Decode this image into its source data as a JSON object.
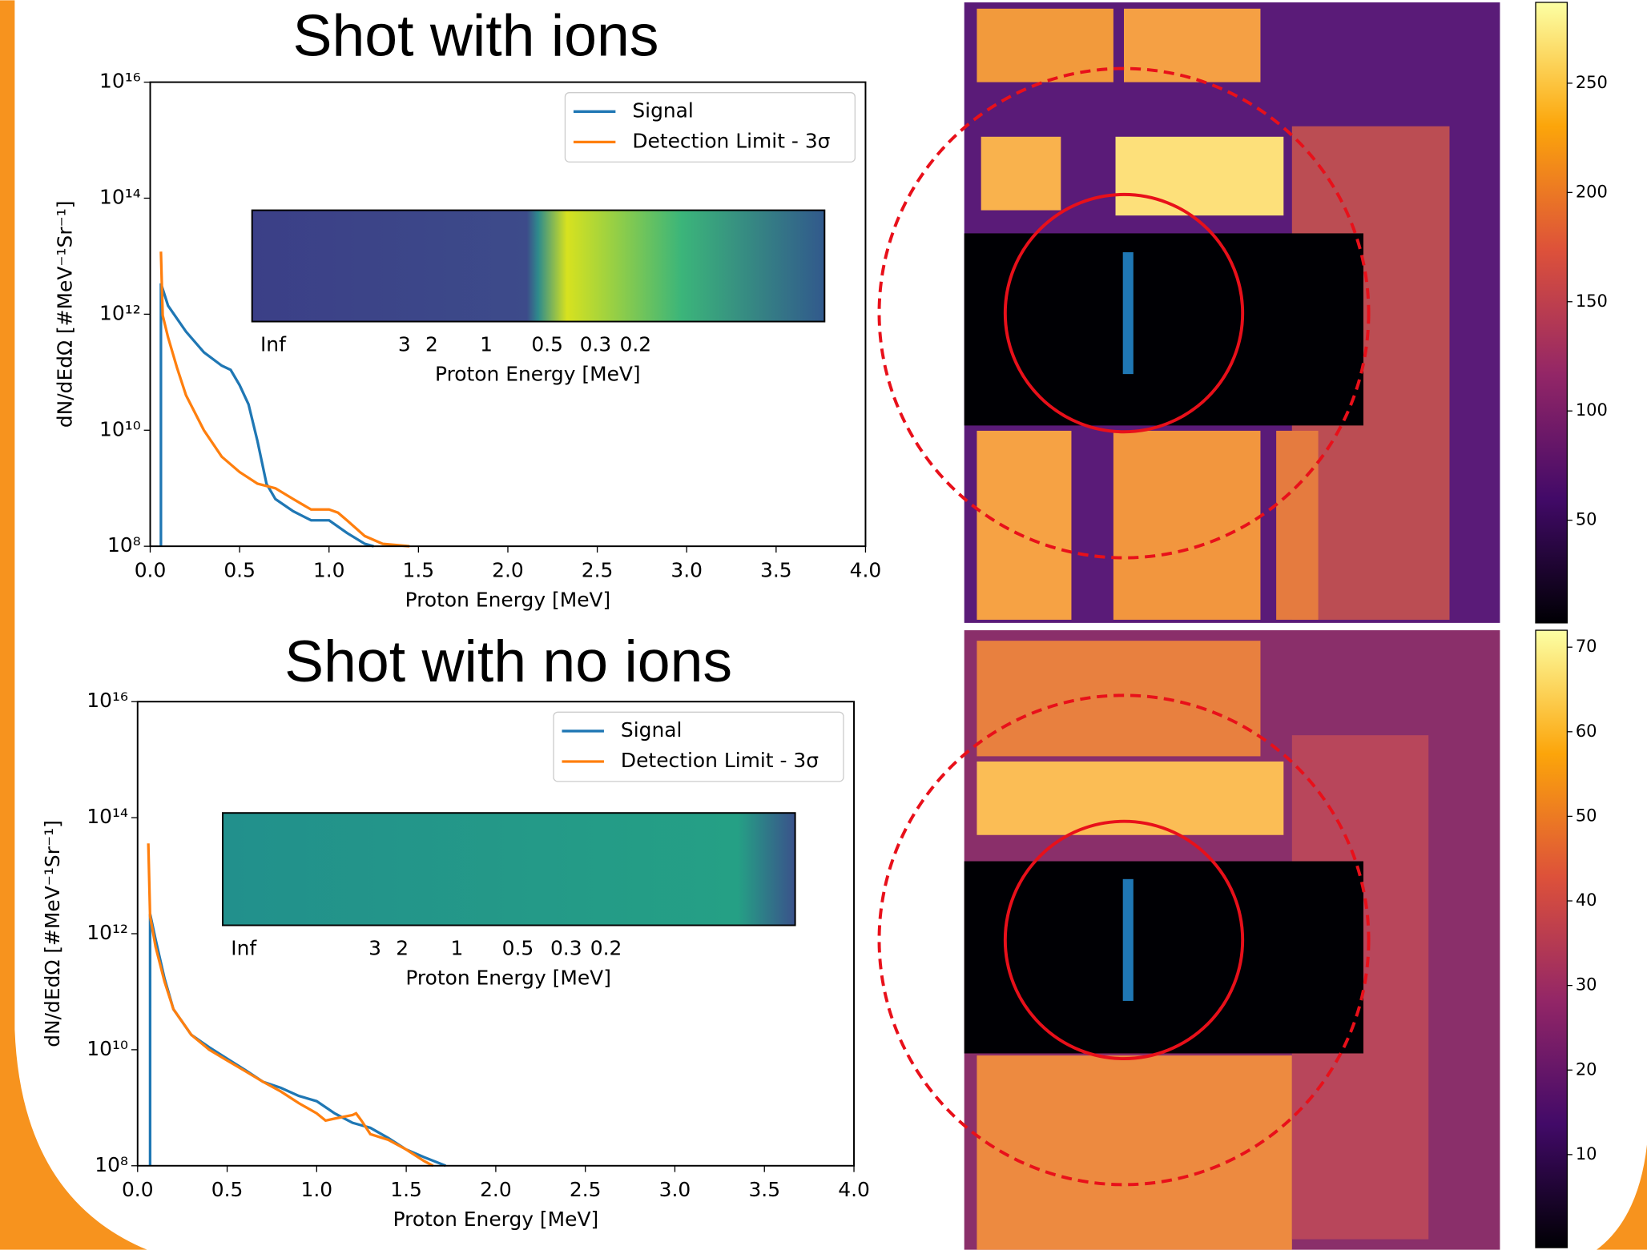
{
  "chart_data": [
    {
      "type": "line",
      "title": "Shot with ions",
      "xlabel": "Proton Energy [MeV]",
      "ylabel": "dN/dEdΩ [#MeV⁻¹Sr⁻¹]",
      "log_y": true,
      "legend": "upper right",
      "xlim": [
        0,
        4
      ],
      "xticks": [
        {
          "value": 0,
          "label": "0.0"
        },
        0.5,
        {
          "value": 1,
          "label": "1.0"
        },
        1.5,
        {
          "value": 2,
          "label": "2.0"
        },
        2.5,
        {
          "value": 3,
          "label": "3.0"
        },
        3.5,
        {
          "value": 4,
          "label": "4.0"
        }
      ],
      "ylim": [
        100000000.0,
        1e+16
      ],
      "yticks": [
        {
          "value": 100000000.0,
          "label": "10⁸"
        },
        {
          "value": 10000000000.0,
          "label": "10¹⁰"
        },
        {
          "value": 1000000000000.0,
          "label": "10¹²"
        },
        {
          "value": 100000000000000.0,
          "label": "10¹⁴"
        },
        {
          "value": 1e+16,
          "label": "10¹⁶"
        }
      ],
      "series": [
        {
          "name": "Signal",
          "color": "#1f77b4",
          "x": [
            0.06,
            0.06,
            0.1,
            0.2,
            0.3,
            0.4,
            0.45,
            0.5,
            0.55,
            0.6,
            0.65,
            0.7,
            0.8,
            0.9,
            1.0,
            1.1,
            1.2,
            1.25
          ],
          "values": [
            100000000.0,
            3400000000000.0,
            1400000000000.0,
            500000000000.0,
            220000000000.0,
            130000000000.0,
            110000000000.0,
            60000000000.0,
            28000000000.0,
            6500000000.0,
            1200000000.0,
            650000000.0,
            400000000.0,
            280000000.0,
            280000000.0,
            170000000.0,
            110000000.0,
            100000000.0
          ]
        },
        {
          "name": "Detection Limit - 3σ",
          "color": "#ff7f0e",
          "x": [
            0.06,
            0.07,
            0.1,
            0.15,
            0.2,
            0.3,
            0.4,
            0.5,
            0.6,
            0.7,
            0.8,
            0.9,
            1.0,
            1.05,
            1.1,
            1.2,
            1.3,
            1.45
          ],
          "values": [
            12000000000000.0,
            950000000000.0,
            400000000000.0,
            120000000000.0,
            40000000000.0,
            10000000000.0,
            3500000000.0,
            1900000000.0,
            1200000000.0,
            1000000000.0,
            650000000.0,
            430000000.0,
            430000000.0,
            380000000.0,
            280000000.0,
            150000000.0,
            110000000.0,
            100000000.0
          ]
        }
      ],
      "inset": {
        "xticks": [
          "Inf",
          "3",
          "2",
          "1",
          "0.5",
          "0.3",
          "0.2"
        ],
        "xlabel": "Proton Energy [MeV]"
      }
    },
    {
      "type": "line",
      "title": "Shot with no ions",
      "xlabel": "Proton Energy [MeV]",
      "ylabel": "dN/dEdΩ [#MeV⁻¹Sr⁻¹]",
      "log_y": true,
      "legend": "upper right",
      "xlim": [
        0,
        4
      ],
      "xticks": [
        {
          "value": 0,
          "label": "0.0"
        },
        0.5,
        {
          "value": 1,
          "label": "1.0"
        },
        1.5,
        {
          "value": 2,
          "label": "2.0"
        },
        2.5,
        {
          "value": 3,
          "label": "3.0"
        },
        3.5,
        {
          "value": 4,
          "label": "4.0"
        }
      ],
      "ylim": [
        100000000.0,
        1e+16
      ],
      "yticks": [
        {
          "value": 100000000.0,
          "label": "10⁸"
        },
        {
          "value": 10000000000.0,
          "label": "10¹⁰"
        },
        {
          "value": 1000000000000.0,
          "label": "10¹²"
        },
        {
          "value": 100000000000000.0,
          "label": "10¹⁴"
        },
        {
          "value": 1e+16,
          "label": "10¹⁶"
        }
      ],
      "series": [
        {
          "name": "Signal",
          "color": "#1f77b4",
          "x": [
            0.07,
            0.07,
            0.1,
            0.15,
            0.2,
            0.3,
            0.4,
            0.5,
            0.6,
            0.7,
            0.8,
            0.9,
            1.0,
            1.1,
            1.2,
            1.3,
            1.4,
            1.5,
            1.6,
            1.72
          ],
          "values": [
            100000000.0,
            2200000000000.0,
            800000000000.0,
            170000000000.0,
            50000000000.0,
            18000000000.0,
            11000000000.0,
            7000000000.0,
            4500000000.0,
            2800000000.0,
            2200000000.0,
            1600000000.0,
            1300000000.0,
            800000000.0,
            550000000.0,
            450000000.0,
            300000000.0,
            190000000.0,
            140000000.0,
            100000000.0
          ]
        },
        {
          "name": "Detection Limit - 3σ",
          "color": "#ff7f0e",
          "x": [
            0.06,
            0.07,
            0.1,
            0.15,
            0.2,
            0.3,
            0.4,
            0.5,
            0.6,
            0.7,
            0.8,
            0.9,
            1.0,
            1.05,
            1.1,
            1.2,
            1.22,
            1.25,
            1.3,
            1.4,
            1.5,
            1.6,
            1.65
          ],
          "values": [
            36000000000000.0,
            2000000000000.0,
            600000000000.0,
            150000000000.0,
            50000000000.0,
            18000000000.0,
            10000000000.0,
            6500000000.0,
            4300000000.0,
            2800000000.0,
            1900000000.0,
            1200000000.0,
            800000000.0,
            600000000.0,
            650000000.0,
            750000000.0,
            800000000.0,
            600000000.0,
            350000000.0,
            280000000.0,
            190000000.0,
            120000000.0,
            100000000.0
          ]
        }
      ],
      "inset": {
        "xticks": [
          "Inf",
          "3",
          "2",
          "1",
          "0.5",
          "0.3",
          "0.2"
        ],
        "xlabel": "Proton Energy [MeV]"
      }
    },
    {
      "type": "colorbar",
      "ylim": [
        3,
        287
      ],
      "yticks": [
        50,
        100,
        150,
        200,
        250
      ]
    },
    {
      "type": "colorbar",
      "ylim": [
        -1,
        72
      ],
      "yticks": [
        10,
        20,
        30,
        40,
        50,
        60,
        70
      ]
    }
  ]
}
